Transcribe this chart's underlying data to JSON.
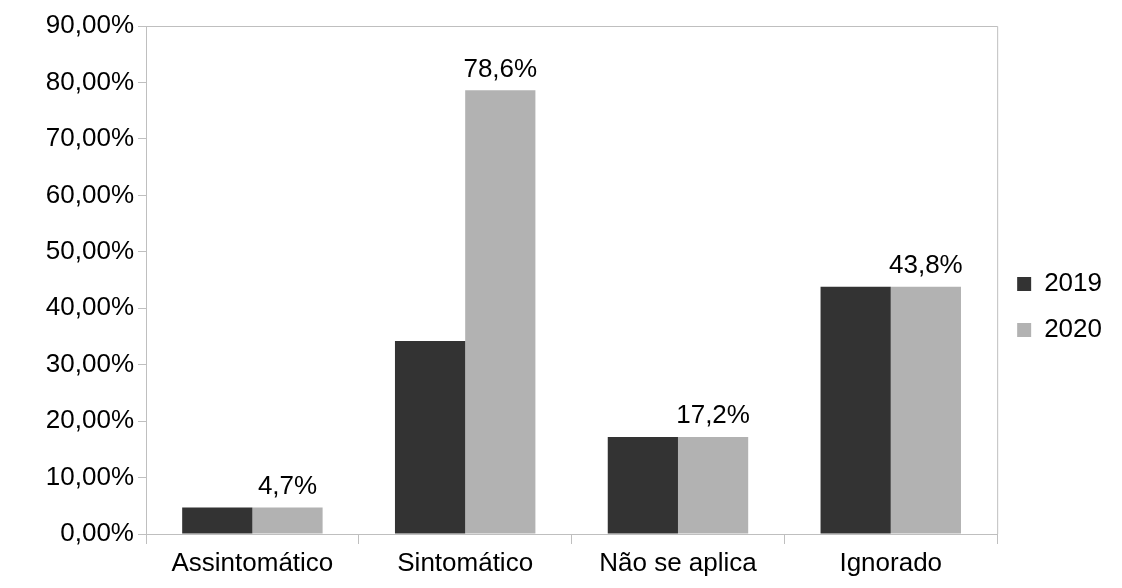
{
  "chart_data": {
    "type": "bar",
    "categories": [
      "Assintomático",
      "Sintomático",
      "Não se aplica",
      "Ignorado"
    ],
    "series": [
      {
        "name": "2019",
        "color": "#333333",
        "values": [
          4.7,
          34.2,
          17.2,
          43.8
        ]
      },
      {
        "name": "2020",
        "color": "#b2b2b2",
        "values": [
          4.7,
          78.6,
          17.2,
          43.8
        ],
        "value_labels": [
          "4,7%",
          "78,6%",
          "17,2%",
          "43,8%"
        ]
      }
    ],
    "ylim": [
      0,
      90
    ],
    "yticks": [
      {
        "value": 0,
        "label": "0,00%"
      },
      {
        "value": 10,
        "label": "10,00%"
      },
      {
        "value": 20,
        "label": "20,00%"
      },
      {
        "value": 30,
        "label": "30,00%"
      },
      {
        "value": 40,
        "label": "40,00%"
      },
      {
        "value": 50,
        "label": "50,00%"
      },
      {
        "value": 60,
        "label": "60,00%"
      },
      {
        "value": 70,
        "label": "70,00%"
      },
      {
        "value": 80,
        "label": "80,00%"
      },
      {
        "value": 90,
        "label": "90,00%"
      }
    ],
    "legend": "right"
  }
}
